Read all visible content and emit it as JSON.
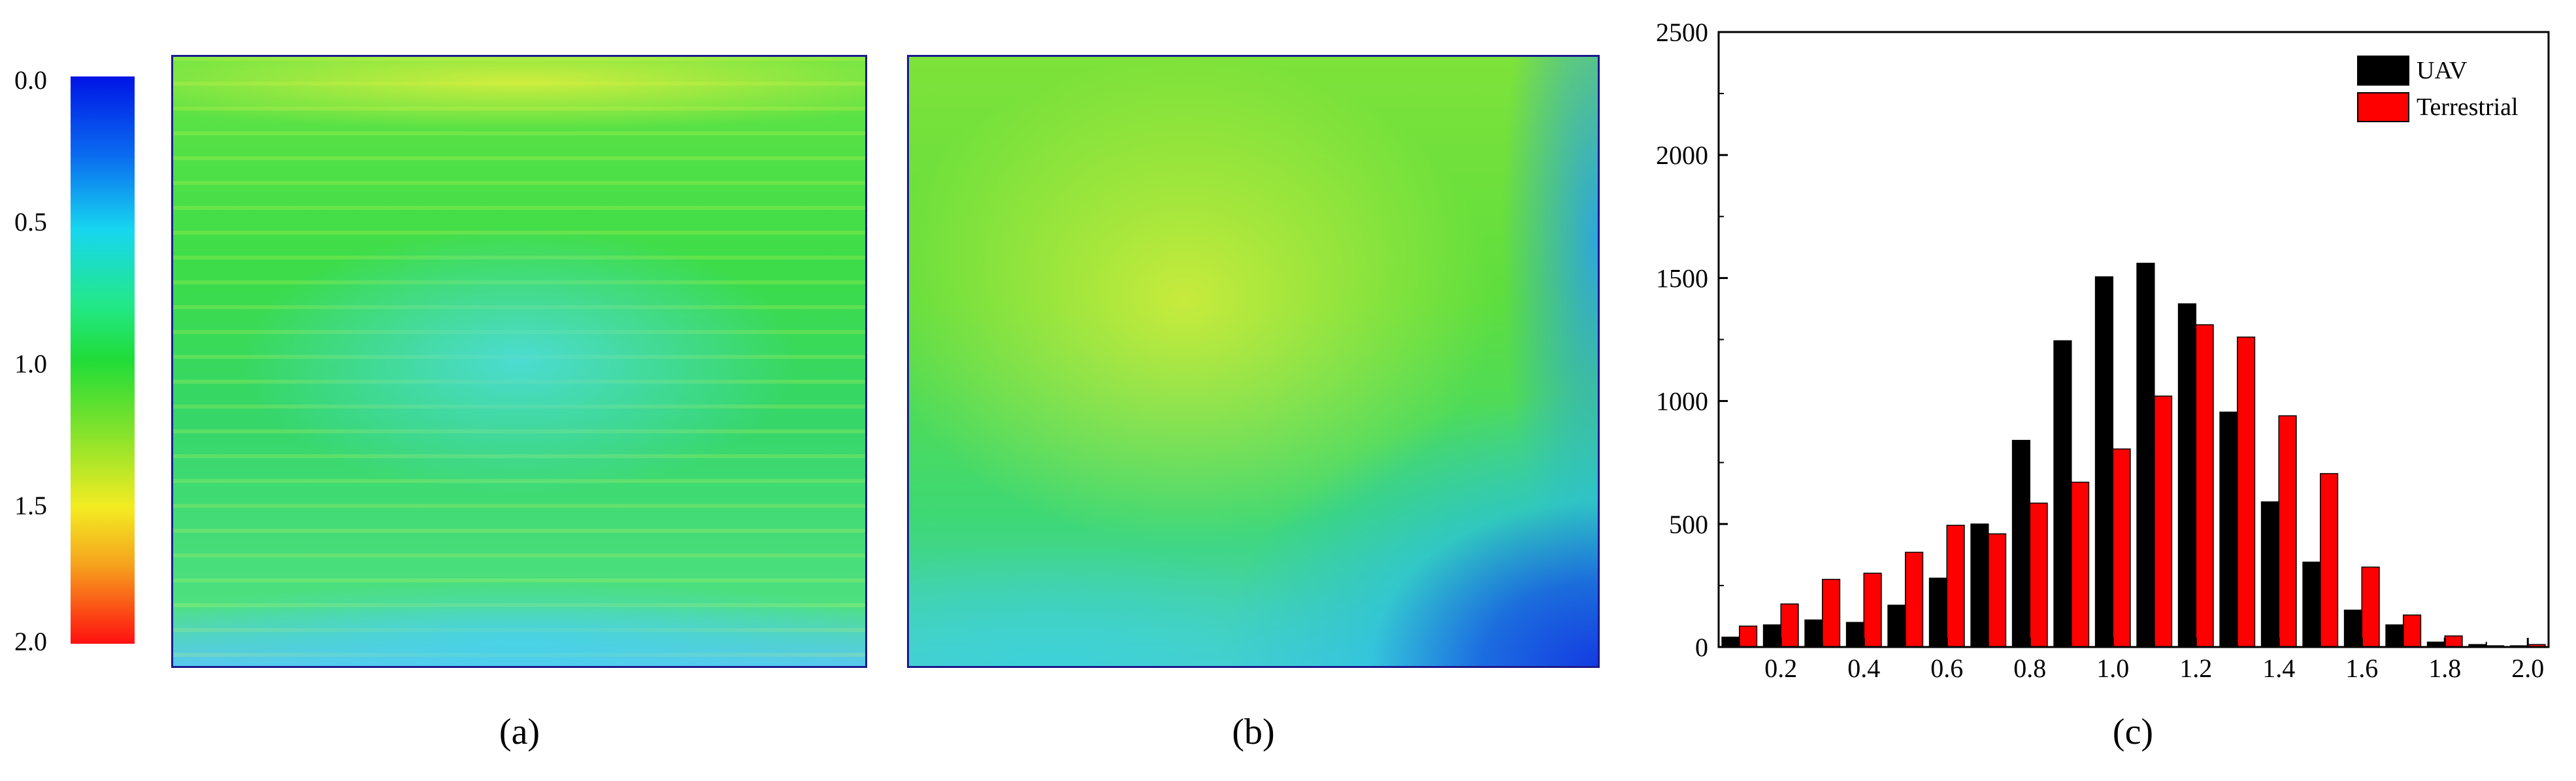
{
  "colorbar": {
    "ticks": [
      "0.0",
      "0.5",
      "1.0",
      "1.5",
      "2.0"
    ],
    "range": [
      0.0,
      2.0
    ]
  },
  "panels": {
    "a_label": "(a)",
    "b_label": "(b)",
    "c_label": "(c)"
  },
  "chart_data": {
    "type": "bar",
    "title": "",
    "xlabel": "",
    "ylabel": "",
    "categories": [
      0.1,
      0.2,
      0.3,
      0.4,
      0.5,
      0.6,
      0.7,
      0.8,
      0.9,
      1.0,
      1.1,
      1.2,
      1.3,
      1.4,
      1.5,
      1.6,
      1.7,
      1.8,
      1.9,
      2.0
    ],
    "x_tick_labels": [
      "0.2",
      "0.4",
      "0.6",
      "0.8",
      "1.0",
      "1.2",
      "1.4",
      "1.6",
      "1.8",
      "2.0"
    ],
    "y_tick_labels": [
      "0",
      "500",
      "1000",
      "1500",
      "2000",
      "2500"
    ],
    "xlim": [
      0.05,
      2.05
    ],
    "ylim": [
      0,
      2500
    ],
    "legend_position": "top-right",
    "series": [
      {
        "name": "UAV",
        "color": "#000000",
        "values": [
          40,
          90,
          110,
          100,
          170,
          280,
          500,
          840,
          1245,
          1505,
          1560,
          1395,
          955,
          590,
          345,
          150,
          90,
          20,
          10,
          5
        ]
      },
      {
        "name": "Terrestrial",
        "color": "#ff0000",
        "values": [
          85,
          175,
          275,
          300,
          385,
          495,
          460,
          585,
          670,
          805,
          1020,
          1310,
          1260,
          940,
          705,
          325,
          130,
          45,
          5,
          10
        ]
      }
    ]
  }
}
